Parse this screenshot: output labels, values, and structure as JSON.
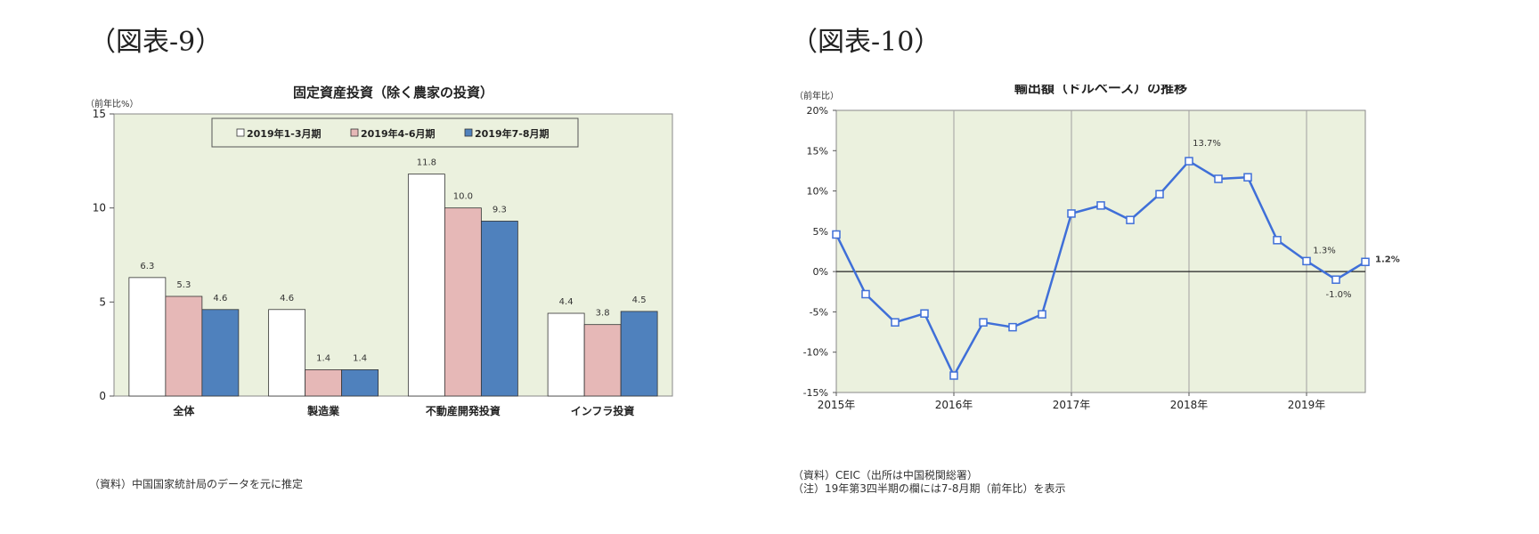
{
  "figures": [
    {
      "label": "（図表-9）",
      "notes": [
        "（資料）中国国家統計局のデータを元に推定"
      ],
      "chart_data": {
        "type": "bar",
        "title": "固定資産投資（除く農家の投資）",
        "ylabel": "（前年比%）",
        "ylim": [
          0,
          15
        ],
        "yticks": [
          0,
          5,
          10,
          15
        ],
        "categories": [
          "全体",
          "製造業",
          "不動産開発投資",
          "インフラ投資"
        ],
        "series": [
          {
            "name": "2019年1-3月期",
            "values": [
              6.3,
              4.6,
              11.8,
              4.4
            ],
            "value_labels": [
              "6.3",
              "4.6",
              "11.8",
              "4.4"
            ],
            "color": "#ffffff"
          },
          {
            "name": "2019年4-6月期",
            "values": [
              5.3,
              1.4,
              10.0,
              3.8
            ],
            "value_labels": [
              "5.3",
              "1.4",
              "10.0",
              "3.8"
            ],
            "color": "#e6b8b7"
          },
          {
            "name": "2019年7-8月期",
            "values": [
              4.6,
              1.4,
              9.3,
              4.5
            ],
            "value_labels": [
              "4.6",
              "1.4",
              "9.3",
              "4.5"
            ],
            "color": "#4f81bd"
          }
        ],
        "legend": "top",
        "plot_bg": "#ebf1de",
        "grid": false
      }
    },
    {
      "label": "（図表-10）",
      "notes": [
        "（資料）CEIC（出所は中国税関総署）",
        "（注）19年第3四半期の欄には7-8月期（前年比）を表示"
      ],
      "chart_data": {
        "type": "line",
        "title": "輸出額（ドルベース）の推移",
        "ylabel": "（前年比）",
        "ylim": [
          -15,
          20
        ],
        "yticks": [
          -15,
          -10,
          -5,
          0,
          5,
          10,
          15,
          20
        ],
        "ytick_labels": [
          "-15%",
          "-10%",
          "-5%",
          "0%",
          "5%",
          "10%",
          "15%",
          "20%"
        ],
        "x": [
          "2015Q1",
          "2015Q2",
          "2015Q3",
          "2015Q4",
          "2016Q1",
          "2016Q2",
          "2016Q3",
          "2016Q4",
          "2017Q1",
          "2017Q2",
          "2017Q3",
          "2017Q4",
          "2018Q1",
          "2018Q2",
          "2018Q3",
          "2018Q4",
          "2019Q1",
          "2019Q2",
          "2019Q3"
        ],
        "xtick_labels": [
          "2015年",
          "2016年",
          "2017年",
          "2018年",
          "2019年"
        ],
        "series": [
          {
            "values": [
              4.6,
              -2.8,
              -6.3,
              -5.2,
              -12.9,
              -6.3,
              -6.9,
              -5.3,
              7.2,
              8.2,
              6.4,
              9.6,
              13.7,
              11.5,
              11.7,
              3.9,
              1.3,
              -1.0,
              1.2
            ],
            "color": "#3f6fd8"
          }
        ],
        "annotations": [
          {
            "index": 12,
            "text": "13.7%"
          },
          {
            "index": 16,
            "text": "1.3%"
          },
          {
            "index": 17,
            "text": "-1.0%"
          },
          {
            "index": 18,
            "text": "1.2%"
          }
        ],
        "plot_bg": "#ebf1de",
        "grid": "vertical-yearly",
        "legend": "none"
      }
    }
  ]
}
